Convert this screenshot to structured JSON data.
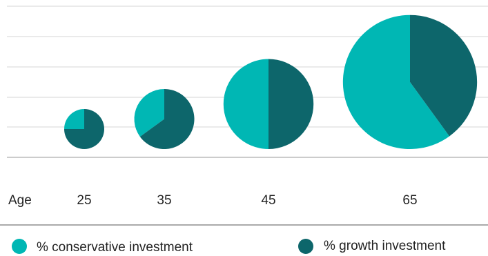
{
  "chart_data": {
    "type": "pie",
    "xlabel": "Age",
    "categories": [
      "25",
      "35",
      "45",
      "65"
    ],
    "series": [
      {
        "name": "% conservative investment",
        "color": "#00b7b4",
        "values": [
          25,
          35,
          50,
          60
        ]
      },
      {
        "name": "% growth investment",
        "color": "#0d666b",
        "values": [
          75,
          65,
          50,
          40
        ]
      }
    ],
    "relative_size": [
      1,
      1.5,
      2.25,
      3.35
    ],
    "grid": true,
    "legend_position": "bottom"
  }
}
